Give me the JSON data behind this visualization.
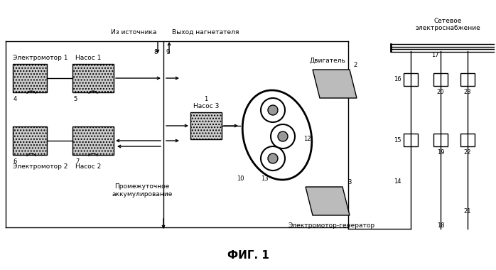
{
  "title": "ФИГ. 1",
  "background_color": "#ffffff",
  "text_color": "#000000",
  "labels": {
    "iz_istochnika": "Из источника",
    "vyhod_nagnetatelya": "Выход нагнетателя",
    "setevoe": "Сетевое\nэлектроснабжение",
    "elektromot1": "Электромотор 1",
    "nasos1": "Насос 1",
    "elektromot2": "Электромотор 2",
    "nasos2": "Насос 2",
    "nasos3": "Насос 3",
    "dvigatel": "Двигатель",
    "elektromot_gen": "Электромотор-генератор",
    "promezhutochnoe": "Промежуточное\nаккумулирование"
  }
}
